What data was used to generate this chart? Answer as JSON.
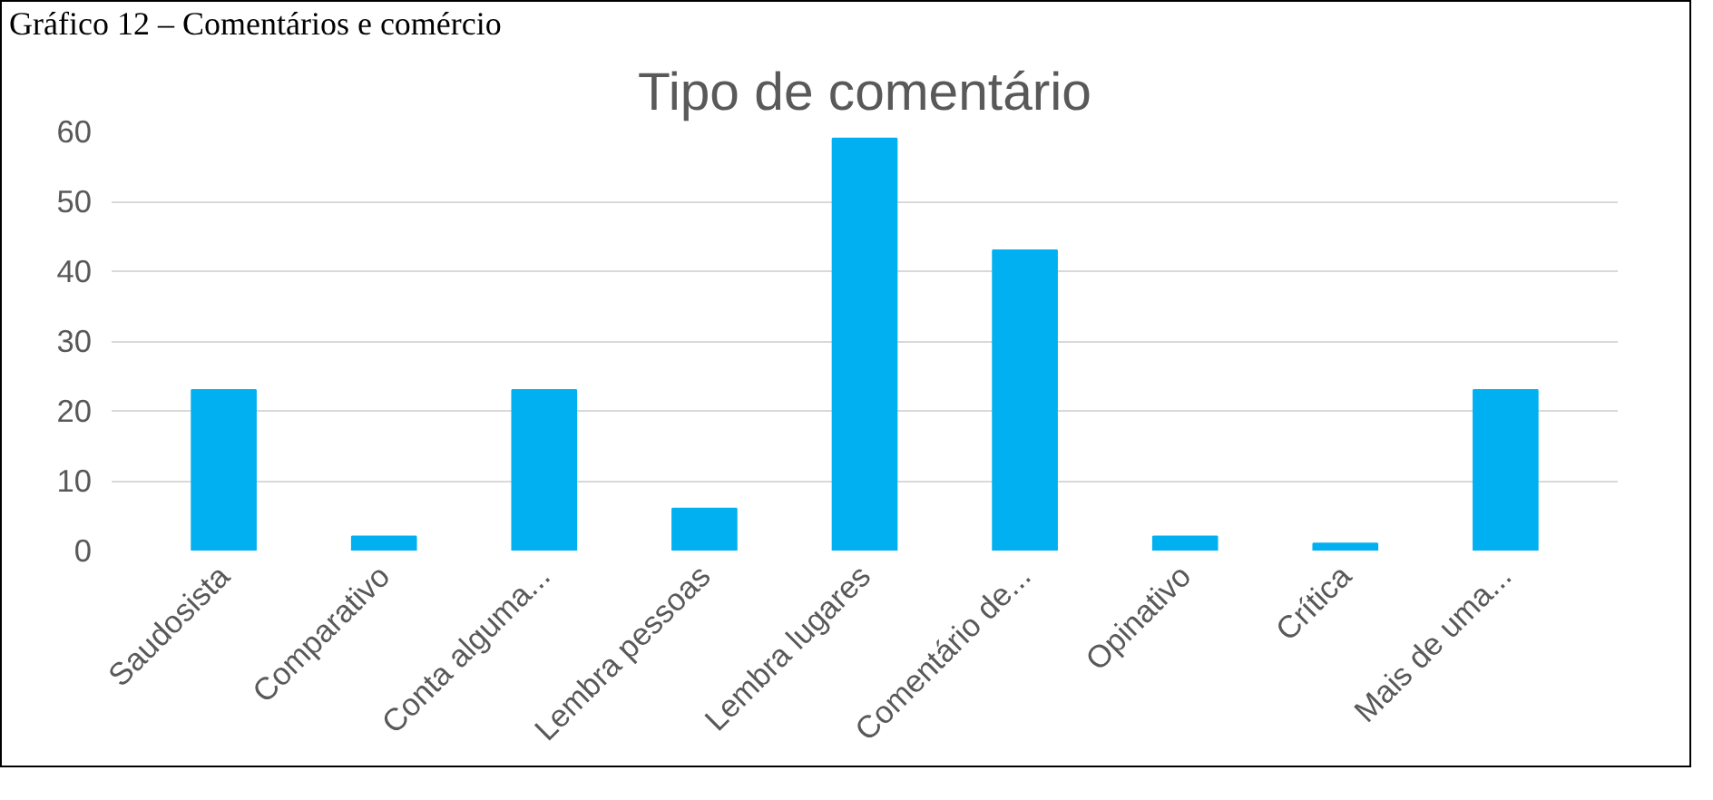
{
  "chart_data": {
    "type": "bar",
    "title": "Tipo de comentário",
    "annotations": [
      "Gráfico 12 – Comentários e comércio"
    ],
    "categories": [
      "Saudosista",
      "Comparativo",
      "Conta alguma...",
      "Lembra pessoas",
      "Lembra lugares",
      "Comentário de...",
      "Opinativo",
      "Crítica",
      "Mais de uma..."
    ],
    "values": [
      23,
      2,
      23,
      6,
      59,
      43,
      2,
      1,
      23
    ],
    "color": "#00b0f0",
    "ylim": [
      0,
      60
    ],
    "yticks": [
      0,
      10,
      20,
      30,
      40,
      50,
      60
    ],
    "grid": "y"
  }
}
